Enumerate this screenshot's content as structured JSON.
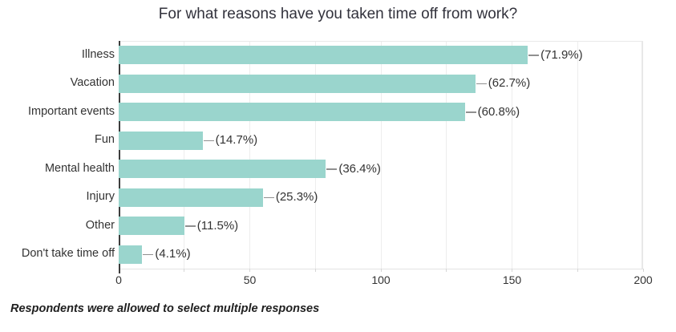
{
  "chart_data": {
    "type": "bar",
    "orientation": "horizontal",
    "title": "For what reasons have you taken time off from work?",
    "categories": [
      "Illness",
      "Vacation",
      "Important events",
      "Fun",
      "Mental health",
      "Injury",
      "Other",
      "Don't take time off"
    ],
    "values": [
      156,
      136,
      132,
      32,
      79,
      55,
      25,
      9
    ],
    "percentages": [
      71.9,
      62.7,
      60.8,
      14.7,
      36.4,
      25.3,
      11.5,
      4.1
    ],
    "value_labels": [
      "(71.9%)",
      "(62.7%)",
      "(60.8%)",
      "(14.7%)",
      "(36.4%)",
      "(25.3%)",
      "(11.5%)",
      "(4.1%)"
    ],
    "x_ticks": [
      0,
      50,
      100,
      150,
      200
    ],
    "xlim": [
      0,
      200
    ],
    "grid_interval": 25,
    "grid_on": true,
    "legend": "none",
    "bar_color": "#9ad5cd",
    "axis_color": "#3d3d3d",
    "gridline_color": "#ededed",
    "leader_line_color": "#909090",
    "label_color": "#333333"
  },
  "footnote": "Respondents were allowed to select multiple responses"
}
